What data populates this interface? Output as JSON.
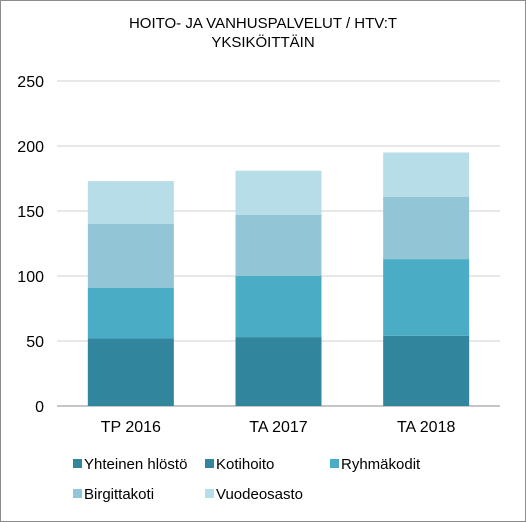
{
  "chart_data": {
    "type": "bar",
    "stacked": true,
    "title": "HOITO-  JA VANHUSPALVELUT  / HTV:T\nYKSIKÖITTÄIN",
    "categories": [
      "TP 2016",
      "TA 2017",
      "TA 2018"
    ],
    "series": [
      {
        "name": "Yhteinen hlöstö",
        "color": "#31859c",
        "values": [
          52,
          53,
          54
        ]
      },
      {
        "name": "Kotihoito",
        "color": "#31859c",
        "values": [
          0,
          0,
          0
        ]
      },
      {
        "name": "Ryhmäkodit",
        "color": "#4bacc6",
        "values": [
          39,
          47,
          59
        ]
      },
      {
        "name": "Birgittakoti",
        "color": "#92c5d6",
        "values": [
          49,
          47,
          48
        ]
      },
      {
        "name": "Vuodeosasto",
        "color": "#b7dde8",
        "values": [
          33,
          34,
          34
        ]
      }
    ],
    "ylim": [
      0,
      250
    ],
    "yticks": [
      "0",
      "50",
      "100",
      "150",
      "200",
      "250"
    ],
    "grid": true,
    "legend_position": "bottom"
  }
}
